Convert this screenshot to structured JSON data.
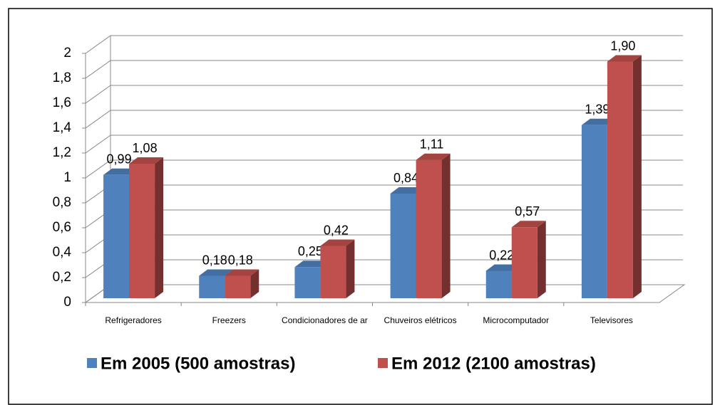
{
  "chart_data": {
    "type": "bar3d",
    "categories": [
      "Refrigeradores",
      "Freezers",
      "Condicionadores de ar",
      "Chuveiros elétricos",
      "Microcomputador",
      "Televisores"
    ],
    "series": [
      {
        "name": "Em 2005 (500 amostras)",
        "color": "#4f81bd",
        "values": [
          0.99,
          0.18,
          0.25,
          0.84,
          0.22,
          1.39
        ],
        "value_labels": [
          "0,99",
          "0,18",
          "0,25",
          "0,84",
          "0,22",
          "1,39"
        ]
      },
      {
        "name": "Em 2012 (2100 amostras)",
        "color": "#c0504d",
        "values": [
          1.08,
          0.18,
          0.42,
          1.11,
          0.57,
          1.9
        ],
        "value_labels": [
          "1,08",
          "0,18",
          "0,42",
          "1,11",
          "0,57",
          "1,90"
        ]
      }
    ],
    "ylim": [
      0,
      2
    ],
    "yticks": [
      0,
      {
        "value": 0.2,
        "label": "0,2"
      },
      {
        "value": 0.4,
        "label": "0,4"
      },
      {
        "value": 0.6,
        "label": "0,6"
      },
      {
        "value": 0.8,
        "label": "0,8"
      },
      1,
      {
        "value": 1.2,
        "label": "1,2"
      },
      {
        "value": 1.4,
        "label": "1,4"
      },
      {
        "value": 1.6,
        "label": "1,6"
      },
      {
        "value": 1.8,
        "label": "1,8"
      },
      2
    ],
    "grid": true,
    "legend": "bottom"
  }
}
